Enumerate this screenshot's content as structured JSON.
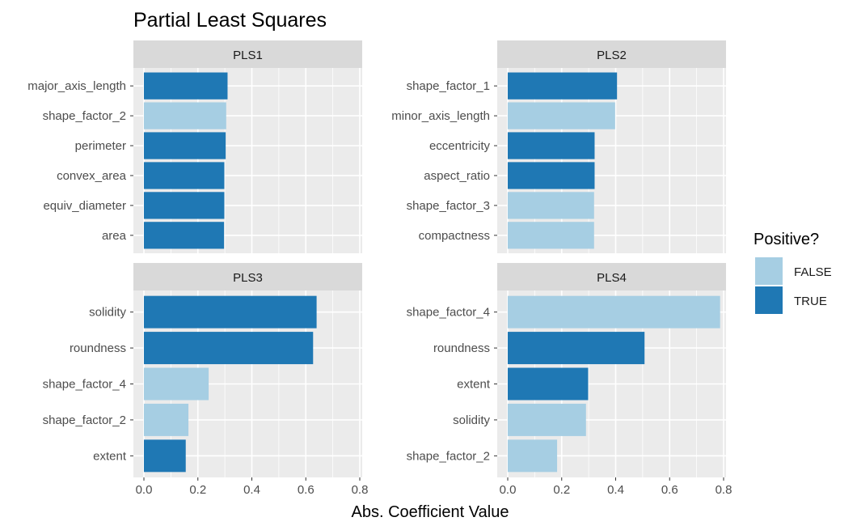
{
  "chart_data": {
    "type": "bar",
    "orientation": "horizontal",
    "title": "Partial Least Squares",
    "xlabel": "Abs. Coefficient Value",
    "ylabel": "",
    "xlim": [
      0,
      0.8
    ],
    "x_ticks": [
      "0.0",
      "0.2",
      "0.4",
      "0.6",
      "0.8"
    ],
    "grid": true,
    "legend": {
      "title": "Positive?",
      "placement": "right",
      "entries": [
        {
          "label": "FALSE",
          "color": "#a6cee3"
        },
        {
          "label": "TRUE",
          "color": "#1f78b4"
        }
      ]
    },
    "facets": [
      {
        "name": "PLS1",
        "categories": [
          "major_axis_length",
          "shape_factor_2",
          "perimeter",
          "convex_area",
          "equiv_diameter",
          "area"
        ],
        "values": [
          0.31,
          0.305,
          0.303,
          0.298,
          0.298,
          0.297
        ],
        "positive": [
          true,
          false,
          true,
          true,
          true,
          true
        ]
      },
      {
        "name": "PLS2",
        "categories": [
          "shape_factor_1",
          "minor_axis_length",
          "eccentricity",
          "aspect_ratio",
          "shape_factor_3",
          "compactness"
        ],
        "values": [
          0.405,
          0.398,
          0.322,
          0.322,
          0.32,
          0.32
        ],
        "positive": [
          true,
          false,
          true,
          true,
          false,
          false
        ]
      },
      {
        "name": "PLS3",
        "categories": [
          "solidity",
          "roundness",
          "shape_factor_4",
          "shape_factor_2",
          "extent"
        ],
        "values": [
          0.64,
          0.627,
          0.24,
          0.165,
          0.155
        ],
        "positive": [
          true,
          true,
          false,
          false,
          true
        ]
      },
      {
        "name": "PLS4",
        "categories": [
          "shape_factor_4",
          "roundness",
          "extent",
          "solidity",
          "shape_factor_2"
        ],
        "values": [
          0.787,
          0.507,
          0.298,
          0.29,
          0.183
        ],
        "positive": [
          false,
          true,
          true,
          false,
          false
        ]
      }
    ]
  },
  "colors": {
    "true_fill": "#1f78b4",
    "false_fill": "#a6cee3",
    "panel_bg": "#ebebeb",
    "strip_bg": "#d9d9d9",
    "grid": "#ffffff"
  }
}
